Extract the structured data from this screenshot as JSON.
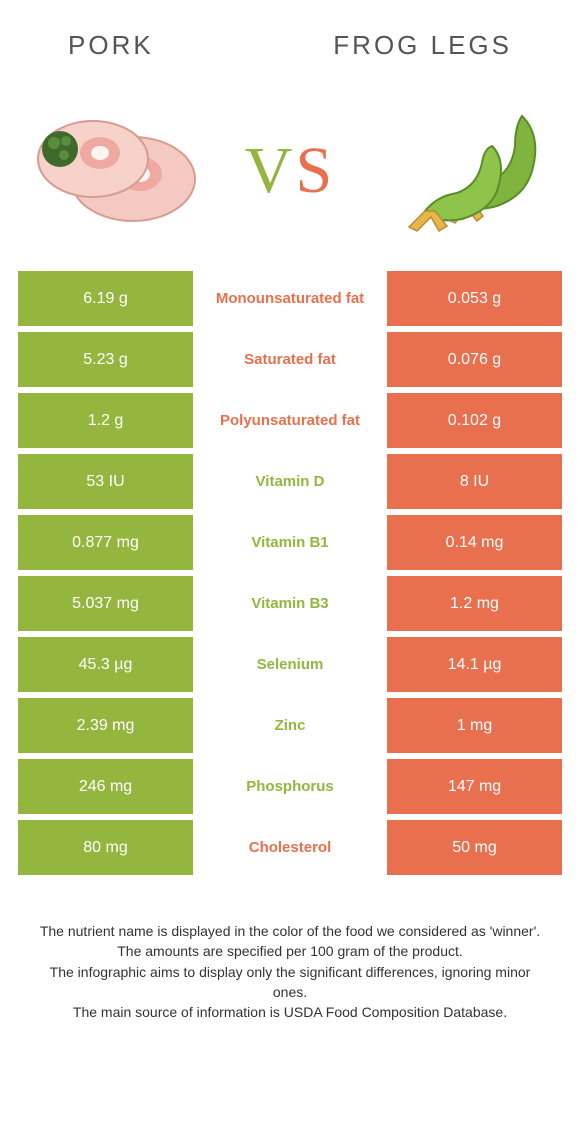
{
  "colors": {
    "pork": "#94b63f",
    "frog": "#e8704e",
    "background": "#ffffff",
    "header_text": "#555555"
  },
  "header": {
    "left": "Pork",
    "right": "Frog legs",
    "vs_v": "V",
    "vs_s": "S"
  },
  "rows": [
    {
      "left": "6.19 g",
      "label": "Monounsaturated fat",
      "right": "0.053 g",
      "label_color": "#e8704e"
    },
    {
      "left": "5.23 g",
      "label": "Saturated fat",
      "right": "0.076 g",
      "label_color": "#e8704e"
    },
    {
      "left": "1.2 g",
      "label": "Polyunsaturated fat",
      "right": "0.102 g",
      "label_color": "#e8704e"
    },
    {
      "left": "53 IU",
      "label": "Vitamin D",
      "right": "8 IU",
      "label_color": "#94b63f"
    },
    {
      "left": "0.877 mg",
      "label": "Vitamin B1",
      "right": "0.14 mg",
      "label_color": "#94b63f"
    },
    {
      "left": "5.037 mg",
      "label": "Vitamin B3",
      "right": "1.2 mg",
      "label_color": "#94b63f"
    },
    {
      "left": "45.3 µg",
      "label": "Selenium",
      "right": "14.1 µg",
      "label_color": "#94b63f"
    },
    {
      "left": "2.39 mg",
      "label": "Zinc",
      "right": "1 mg",
      "label_color": "#94b63f"
    },
    {
      "left": "246 mg",
      "label": "Phosphorus",
      "right": "147 mg",
      "label_color": "#94b63f"
    },
    {
      "left": "80 mg",
      "label": "Cholesterol",
      "right": "50 mg",
      "label_color": "#e8704e"
    }
  ],
  "footnotes": [
    "The nutrient name is displayed in the color of the food we considered as 'winner'.",
    "The amounts are specified per 100 gram of the product.",
    "The infographic aims to display only the significant differences, ignoring minor ones.",
    "The main source of information is USDA Food Composition Database."
  ]
}
